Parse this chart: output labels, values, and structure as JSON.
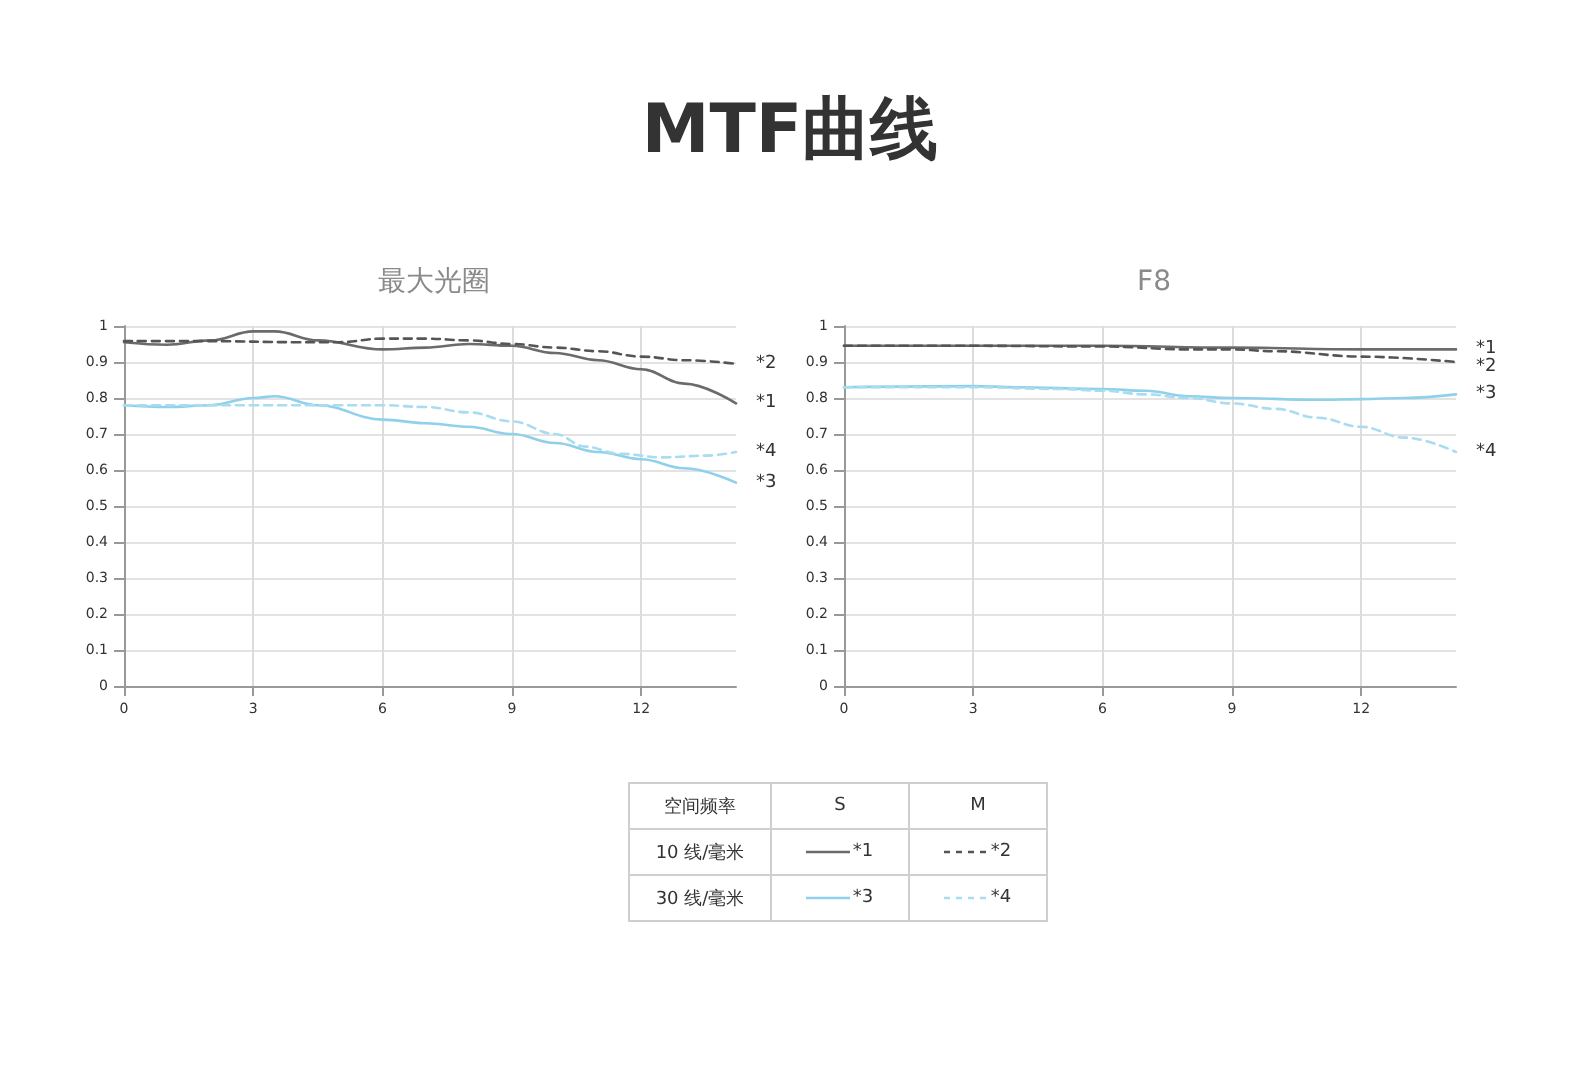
{
  "chart_data": [
    {
      "type": "line",
      "title": "最大光圈",
      "xlim": [
        0,
        14.2
      ],
      "xticks": [
        0,
        3,
        6,
        9,
        12
      ],
      "ylim": [
        0,
        1
      ],
      "yticks": [
        0,
        0.1,
        0.2,
        0.3,
        0.4,
        0.5,
        0.6,
        0.7,
        0.8,
        0.9,
        1
      ],
      "grid": true,
      "legend": false,
      "marker": "none",
      "series": [
        {
          "name": "*1",
          "color": "#6b6b6b",
          "line_style": "solid",
          "x": [
            0,
            1,
            2,
            3,
            3.5,
            4.5,
            6,
            7,
            8,
            9,
            10,
            11,
            12,
            13,
            14.2
          ],
          "values": [
            0.955,
            0.948,
            0.96,
            0.985,
            0.985,
            0.96,
            0.935,
            0.94,
            0.95,
            0.945,
            0.925,
            0.905,
            0.88,
            0.84,
            0.785
          ]
        },
        {
          "name": "*2",
          "color": "#555555",
          "line_style": "dashed",
          "x": [
            0,
            2,
            4,
            5,
            6,
            7,
            8,
            9,
            10,
            11,
            12,
            13,
            14.2
          ],
          "values": [
            0.958,
            0.958,
            0.955,
            0.955,
            0.965,
            0.965,
            0.96,
            0.95,
            0.94,
            0.93,
            0.915,
            0.905,
            0.895
          ]
        },
        {
          "name": "*3",
          "color": "#8fd0ea",
          "line_style": "solid",
          "x": [
            0,
            1,
            2,
            3,
            3.5,
            4.5,
            6,
            7,
            8,
            9,
            10,
            11,
            12,
            13,
            14.2
          ],
          "values": [
            0.78,
            0.775,
            0.78,
            0.8,
            0.805,
            0.78,
            0.74,
            0.73,
            0.72,
            0.7,
            0.675,
            0.65,
            0.63,
            0.605,
            0.565
          ]
        },
        {
          "name": "*4",
          "color": "#a8dcf0",
          "line_style": "dashed",
          "x": [
            0,
            1,
            2,
            3,
            5,
            6,
            7,
            8,
            9,
            10,
            10.7,
            11.5,
            12.5,
            13.5,
            14.2
          ],
          "values": [
            0.78,
            0.78,
            0.78,
            0.78,
            0.78,
            0.78,
            0.775,
            0.76,
            0.735,
            0.7,
            0.665,
            0.645,
            0.635,
            0.64,
            0.65
          ]
        }
      ]
    },
    {
      "type": "line",
      "title": "F8",
      "xlim": [
        0,
        14.2
      ],
      "xticks": [
        0,
        3,
        6,
        9,
        12
      ],
      "ylim": [
        0,
        1
      ],
      "yticks": [
        0,
        0.1,
        0.2,
        0.3,
        0.4,
        0.5,
        0.6,
        0.7,
        0.8,
        0.9,
        1
      ],
      "grid": true,
      "legend": false,
      "marker": "none",
      "series": [
        {
          "name": "*1",
          "color": "#6b6b6b",
          "line_style": "solid",
          "x": [
            0,
            3,
            6,
            9,
            12,
            14.2
          ],
          "values": [
            0.945,
            0.945,
            0.945,
            0.94,
            0.935,
            0.935
          ]
        },
        {
          "name": "*2",
          "color": "#555555",
          "line_style": "dashed",
          "x": [
            0,
            3,
            6,
            8,
            9,
            10,
            12,
            14.2
          ],
          "values": [
            0.945,
            0.945,
            0.943,
            0.935,
            0.935,
            0.93,
            0.915,
            0.9
          ]
        },
        {
          "name": "*3",
          "color": "#8fd0ea",
          "line_style": "solid",
          "x": [
            0,
            3,
            4,
            6,
            7,
            8,
            9,
            11,
            12,
            13,
            14.2
          ],
          "values": [
            0.83,
            0.833,
            0.83,
            0.825,
            0.82,
            0.805,
            0.8,
            0.795,
            0.797,
            0.8,
            0.81
          ]
        },
        {
          "name": "*4",
          "color": "#a8dcf0",
          "line_style": "dashed",
          "x": [
            0,
            3,
            5,
            6,
            7,
            8,
            9,
            10,
            11,
            12,
            13,
            14.2
          ],
          "values": [
            0.83,
            0.83,
            0.825,
            0.82,
            0.81,
            0.8,
            0.785,
            0.77,
            0.745,
            0.72,
            0.69,
            0.65
          ]
        }
      ]
    },
    {
      "type": "other",
      "title": "MTF曲线",
      "annotations": [
        "空间频率",
        "S",
        "M",
        "10 线/毫米",
        "30 线/毫米"
      ]
    }
  ]
}
